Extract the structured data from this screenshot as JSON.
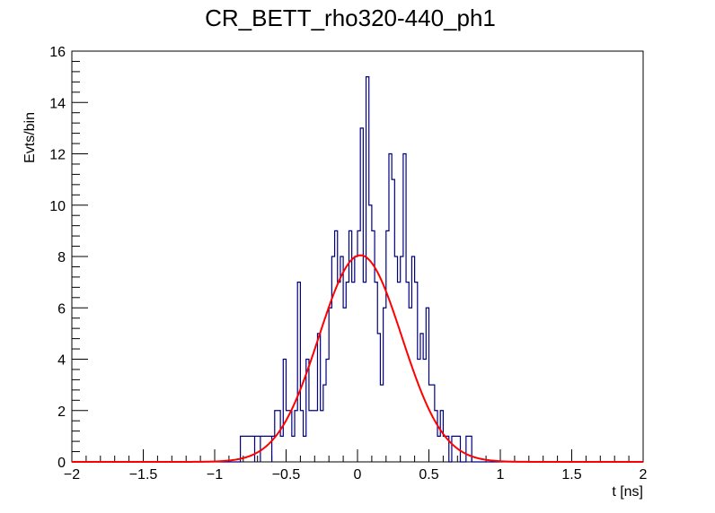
{
  "chart_data": {
    "type": "line",
    "title": "CR_BETT_rho320-440_ph1",
    "xlabel": "t [ns]",
    "ylabel": "Evts/bin",
    "xlim": [
      -2,
      2
    ],
    "ylim": [
      0,
      16
    ],
    "x_ticks": [
      -2,
      -1.5,
      -1,
      -0.5,
      0,
      0.5,
      1,
      1.5,
      2
    ],
    "x_tick_labels": [
      "−2",
      "−1.5",
      "−1",
      "−0.5",
      "0",
      "0.5",
      "1",
      "1.5",
      "2"
    ],
    "y_ticks": [
      0,
      2,
      4,
      6,
      8,
      10,
      12,
      14,
      16
    ],
    "y_tick_labels": [
      "0",
      "2",
      "4",
      "6",
      "8",
      "10",
      "12",
      "14",
      "16"
    ],
    "grid": false,
    "legend": "none",
    "histogram_color": "#000080",
    "fit_color": "#ff0000",
    "series": [
      {
        "kind": "histogram",
        "bin_width": 0.02,
        "bins": [
          [
            -0.82,
            -0.8,
            1
          ],
          [
            -0.72,
            -0.7,
            1
          ],
          [
            -0.68,
            -0.66,
            1
          ],
          [
            -0.66,
            -0.64,
            1
          ],
          [
            -0.64,
            -0.62,
            1
          ],
          [
            -0.6,
            -0.58,
            1
          ],
          [
            -0.58,
            -0.56,
            2
          ],
          [
            -0.56,
            -0.54,
            2
          ],
          [
            -0.54,
            -0.52,
            1
          ],
          [
            -0.52,
            -0.5,
            4
          ],
          [
            -0.5,
            -0.48,
            2
          ],
          [
            -0.48,
            -0.46,
            2
          ],
          [
            -0.46,
            -0.44,
            1
          ],
          [
            -0.44,
            -0.42,
            2
          ],
          [
            -0.42,
            -0.4,
            7
          ],
          [
            -0.4,
            -0.38,
            2
          ],
          [
            -0.38,
            -0.36,
            1
          ],
          [
            -0.36,
            -0.34,
            4
          ],
          [
            -0.34,
            -0.32,
            2
          ],
          [
            -0.32,
            -0.3,
            2
          ],
          [
            -0.3,
            -0.28,
            2
          ],
          [
            -0.28,
            -0.26,
            5
          ],
          [
            -0.26,
            -0.24,
            2
          ],
          [
            -0.24,
            -0.22,
            3
          ],
          [
            -0.22,
            -0.2,
            4
          ],
          [
            -0.2,
            -0.18,
            6
          ],
          [
            -0.18,
            -0.16,
            8
          ],
          [
            -0.16,
            -0.14,
            9
          ],
          [
            -0.14,
            -0.12,
            7
          ],
          [
            -0.12,
            -0.1,
            8
          ],
          [
            -0.1,
            -0.08,
            6
          ],
          [
            -0.08,
            -0.06,
            7
          ],
          [
            -0.06,
            -0.04,
            9
          ],
          [
            -0.04,
            -0.02,
            7
          ],
          [
            -0.02,
            0.0,
            8
          ],
          [
            0.0,
            0.02,
            9
          ],
          [
            0.02,
            0.04,
            13
          ],
          [
            0.04,
            0.06,
            7
          ],
          [
            0.06,
            0.08,
            15
          ],
          [
            0.08,
            0.1,
            10
          ],
          [
            0.1,
            0.12,
            9
          ],
          [
            0.12,
            0.14,
            7
          ],
          [
            0.14,
            0.16,
            5
          ],
          [
            0.16,
            0.18,
            3
          ],
          [
            0.18,
            0.2,
            6
          ],
          [
            0.2,
            0.22,
            9
          ],
          [
            0.22,
            0.24,
            12
          ],
          [
            0.24,
            0.26,
            11
          ],
          [
            0.26,
            0.28,
            8
          ],
          [
            0.28,
            0.3,
            7
          ],
          [
            0.3,
            0.32,
            8
          ],
          [
            0.32,
            0.34,
            12
          ],
          [
            0.34,
            0.36,
            7
          ],
          [
            0.36,
            0.38,
            6
          ],
          [
            0.38,
            0.4,
            8
          ],
          [
            0.4,
            0.42,
            7
          ],
          [
            0.42,
            0.44,
            4
          ],
          [
            0.44,
            0.46,
            5
          ],
          [
            0.46,
            0.48,
            4
          ],
          [
            0.48,
            0.5,
            6
          ],
          [
            0.5,
            0.52,
            3
          ],
          [
            0.52,
            0.54,
            3
          ],
          [
            0.54,
            0.56,
            2
          ],
          [
            0.56,
            0.58,
            1
          ],
          [
            0.58,
            0.6,
            2
          ],
          [
            0.6,
            0.62,
            1
          ],
          [
            0.62,
            0.64,
            1
          ],
          [
            0.64,
            0.66,
            0
          ],
          [
            0.66,
            0.68,
            1
          ],
          [
            0.68,
            0.7,
            1
          ],
          [
            0.7,
            0.72,
            1
          ],
          [
            0.72,
            0.74,
            0
          ],
          [
            0.74,
            0.76,
            0
          ],
          [
            0.76,
            0.78,
            1
          ],
          [
            0.78,
            0.8,
            1
          ]
        ],
        "comment_bins": "[x_low, x_high, count]"
      },
      {
        "kind": "gaussian_fit",
        "amplitude": 8.05,
        "mean": 0.02,
        "sigma": 0.29
      }
    ]
  }
}
